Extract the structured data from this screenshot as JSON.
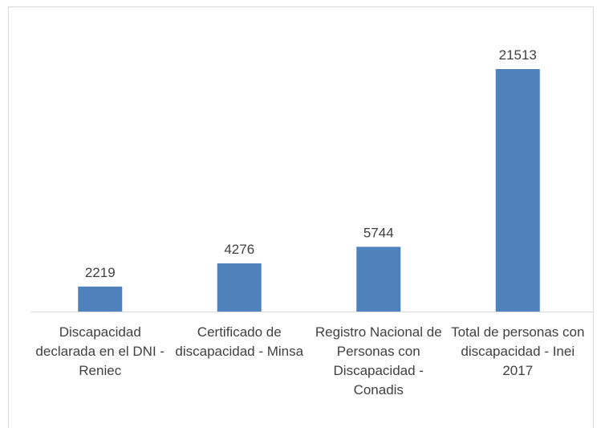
{
  "chart_data": {
    "type": "bar",
    "categories": [
      "Discapacidad declarada en el DNI - Reniec",
      "Certificado de discapacidad - Minsa",
      "Registro Nacional de Personas con Discapacidad - Conadis",
      "Total de personas con discapacidad - Inei 2017"
    ],
    "values": [
      2219,
      4276,
      5744,
      21513
    ],
    "color": "#4f81bd"
  }
}
